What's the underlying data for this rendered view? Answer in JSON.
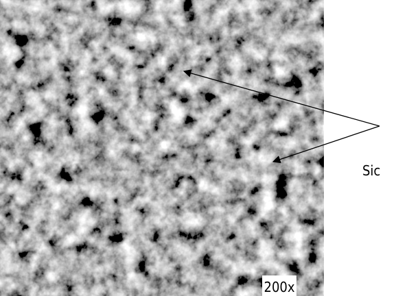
{
  "annotation": {
    "label": "Sic"
  },
  "magnification": "200x"
}
